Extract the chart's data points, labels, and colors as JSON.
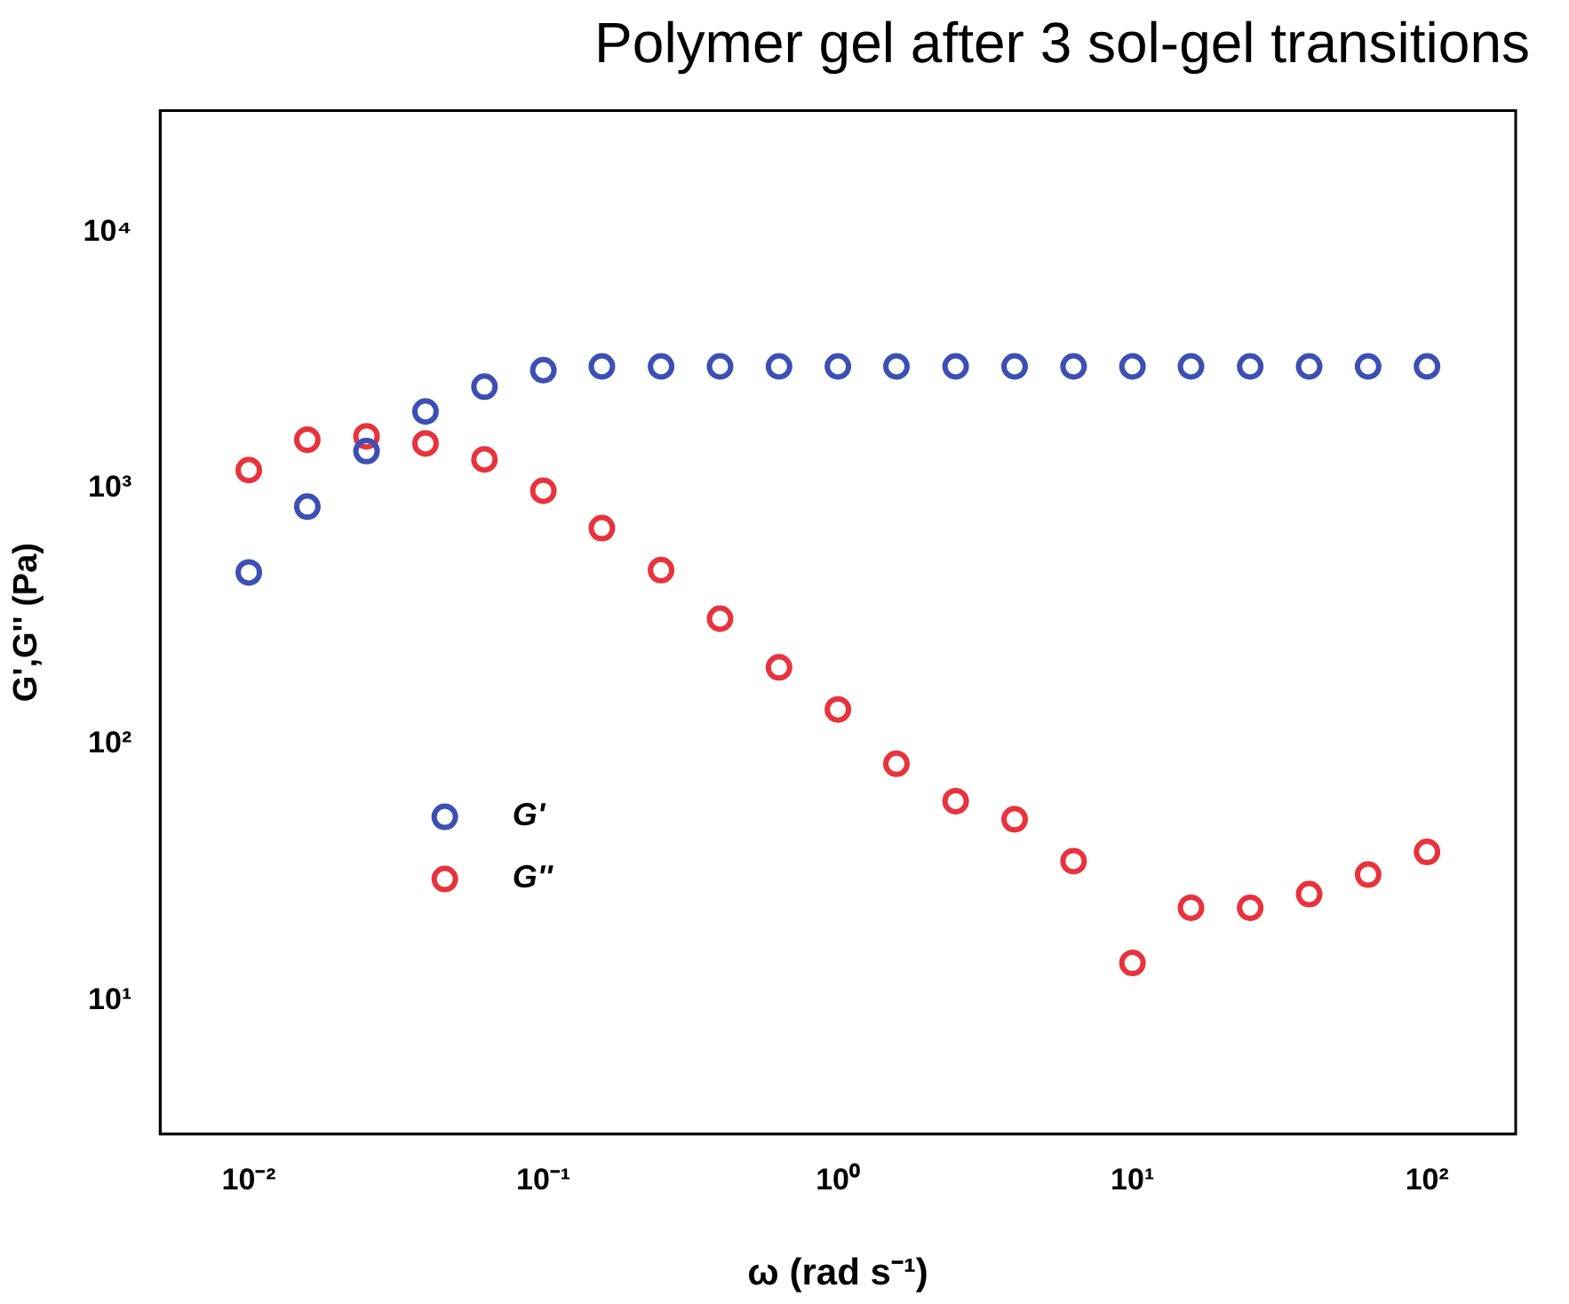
{
  "chart_data": {
    "type": "scatter",
    "title": "Polymer gel after 3 sol-gel transitions",
    "xlabel": "ω (rad s⁻¹)",
    "ylabel": "G',G'' (Pa)",
    "x": [
      0.01,
      0.0158,
      0.0251,
      0.0398,
      0.0631,
      0.1,
      0.158,
      0.251,
      0.398,
      0.631,
      1,
      1.58,
      2.51,
      3.98,
      6.31,
      10,
      15.8,
      25.1,
      39.8,
      63.1,
      100
    ],
    "series": [
      {
        "name": "G'",
        "color": "#3b4fb5",
        "values": [
          470,
          850,
          1400,
          2000,
          2500,
          2900,
          3000,
          3000,
          3000,
          3000,
          3000,
          3000,
          3000,
          3000,
          3000,
          3000,
          3000,
          3000,
          3000,
          3000,
          3000
        ]
      },
      {
        "name": "G''",
        "color": "#e8333c",
        "values": [
          1180,
          1550,
          1600,
          1500,
          1300,
          980,
          700,
          480,
          310,
          200,
          137,
          84,
          60,
          51,
          35,
          14,
          23,
          23,
          26,
          31,
          38
        ]
      }
    ],
    "log": "xy",
    "xlim": [
      0.005,
      200
    ],
    "ylim": [
      3,
      30000
    ],
    "xticks": [
      {
        "value": 0.01,
        "label": "10⁻²"
      },
      {
        "value": 0.1,
        "label": "10⁻¹"
      },
      {
        "value": 1,
        "label": "10⁰"
      },
      {
        "value": 10,
        "label": "10¹"
      },
      {
        "value": 100,
        "label": "10²"
      }
    ],
    "yticks": [
      {
        "value": 10,
        "label": "10¹"
      },
      {
        "value": 100,
        "label": "10²"
      },
      {
        "value": 1000,
        "label": "10³"
      },
      {
        "value": 10000,
        "label": "10⁴"
      }
    ],
    "marker": "circle",
    "legend": "bottom left",
    "grid": false
  }
}
